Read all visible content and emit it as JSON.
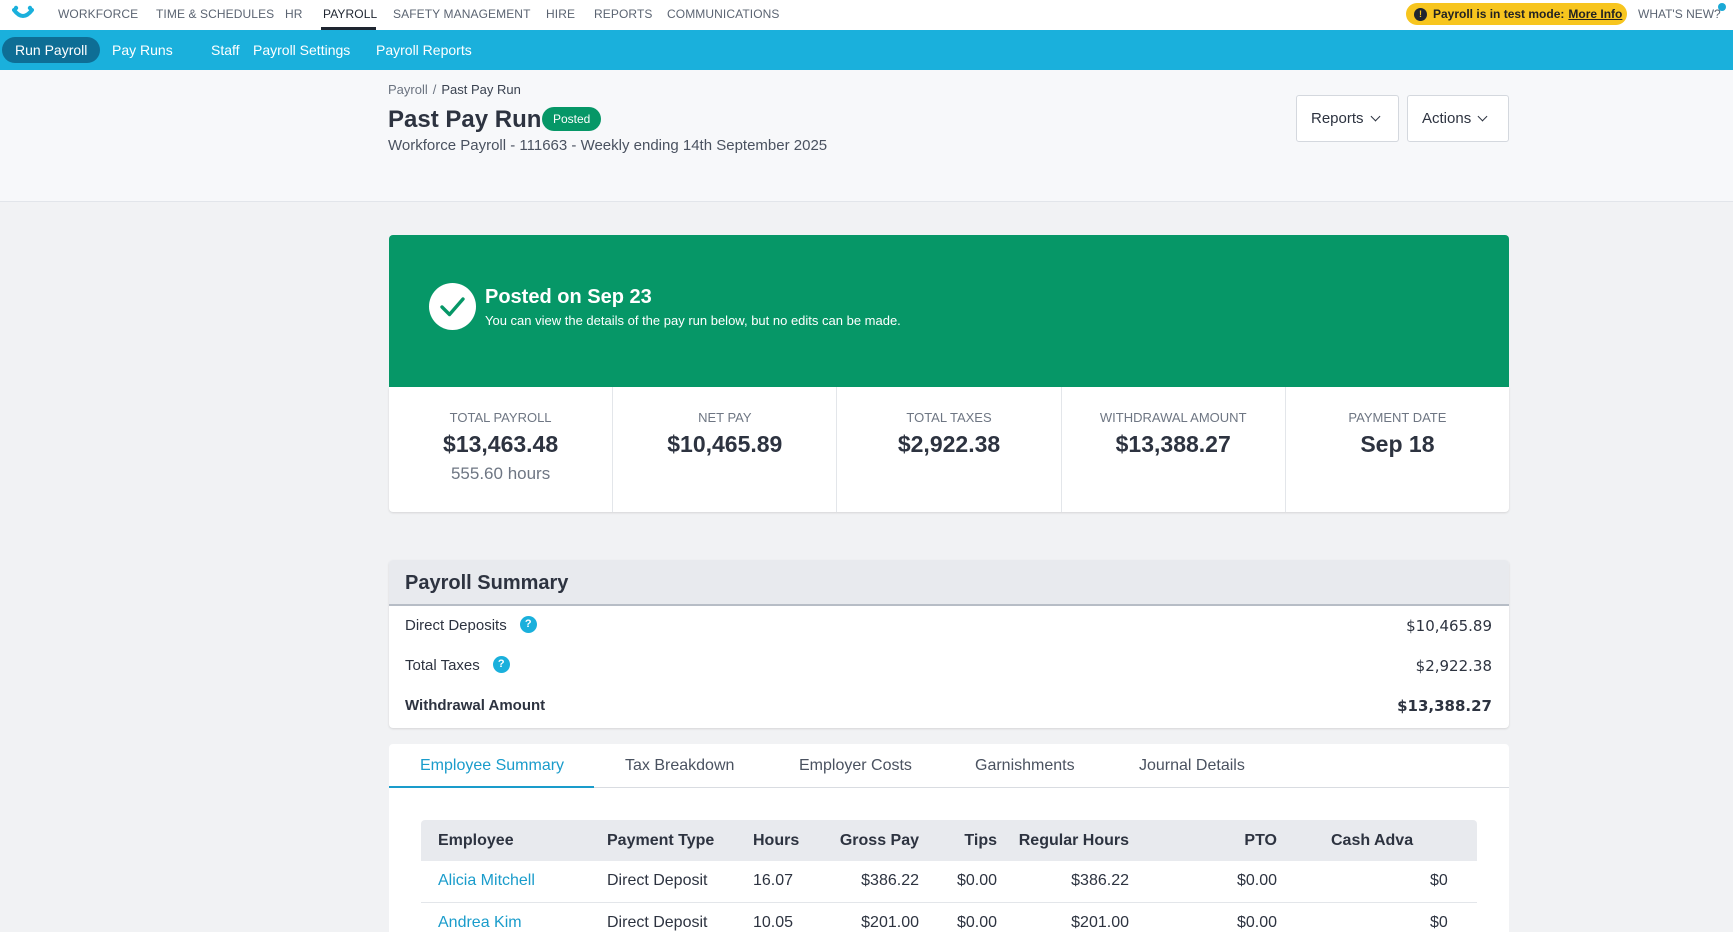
{
  "topnav": {
    "items": [
      "WORKFORCE",
      "TIME & SCHEDULES",
      "HR",
      "PAYROLL",
      "SAFETY MANAGEMENT",
      "HIRE",
      "REPORTS",
      "COMMUNICATIONS"
    ],
    "test_mode_label": "Payroll is in test mode:",
    "test_mode_link": "More Info",
    "whats_new": "WHAT'S NEW?"
  },
  "subnav": {
    "items": [
      "Run Payroll",
      "Pay Runs",
      "Staff",
      "Payroll Settings",
      "Payroll Reports"
    ]
  },
  "header": {
    "breadcrumb_root": "Payroll",
    "breadcrumb_sep": "/",
    "breadcrumb_current": "Past Pay Run",
    "title": "Past Pay Run",
    "status": "Posted",
    "subtitle": "Workforce Payroll - 111663 - Weekly ending 14th September 2025",
    "reports_button": "Reports",
    "actions_button": "Actions"
  },
  "banner": {
    "title": "Posted on Sep 23",
    "text": "You can view the details of the pay run below, but no edits can be made."
  },
  "stats": [
    {
      "label": "TOTAL PAYROLL",
      "value": "$13,463.48",
      "sub": "555.60 hours"
    },
    {
      "label": "NET PAY",
      "value": "$10,465.89",
      "sub": ""
    },
    {
      "label": "TOTAL TAXES",
      "value": "$2,922.38",
      "sub": ""
    },
    {
      "label": "WITHDRAWAL AMOUNT",
      "value": "$13,388.27",
      "sub": ""
    },
    {
      "label": "PAYMENT DATE",
      "value": "Sep 18",
      "sub": ""
    }
  ],
  "summary": {
    "title": "Payroll Summary",
    "rows": [
      {
        "label": "Direct Deposits",
        "value": "$10,465.89"
      },
      {
        "label": "Total Taxes",
        "value": "$2,922.38"
      },
      {
        "label": "Withdrawal Amount",
        "value": "$13,388.27"
      }
    ]
  },
  "tabs": [
    "Employee Summary",
    "Tax Breakdown",
    "Employer Costs",
    "Garnishments",
    "Journal Details"
  ],
  "table": {
    "columns": [
      "Employee",
      "Payment Type",
      "Hours",
      "Gross Pay",
      "Tips",
      "Regular Hours",
      "PTO",
      "Cash Adva"
    ],
    "rows": [
      [
        "Alicia Mitchell",
        "Direct Deposit",
        "16.07",
        "$386.22",
        "$0.00",
        "$386.22",
        "$0.00",
        "$0"
      ],
      [
        "Andrea Kim",
        "Direct Deposit",
        "10.05",
        "$201.00",
        "$0.00",
        "$201.00",
        "$0.00",
        "$0"
      ]
    ]
  },
  "colors": {
    "accent": "#1ab0dc",
    "posted_green": "#069767",
    "test_mode_yellow": "#f7c51e"
  }
}
